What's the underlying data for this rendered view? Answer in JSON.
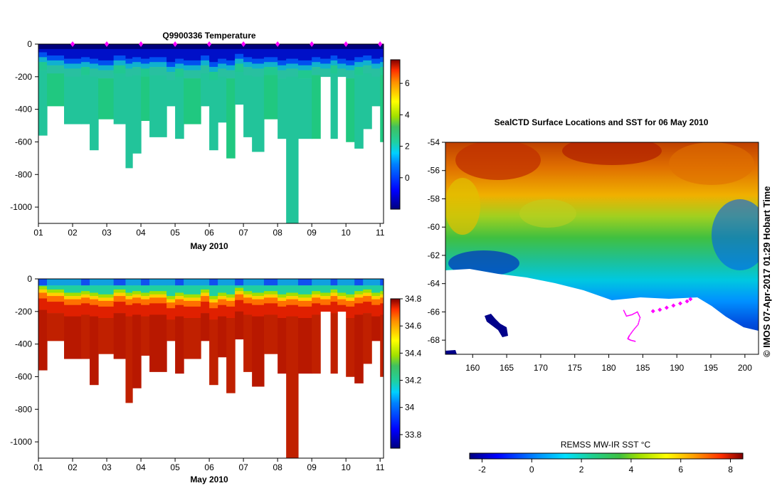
{
  "panels": {
    "temperature": {
      "title": "Q9900336  Temperature",
      "xlabel": "May 2010"
    },
    "salinity": {
      "xlabel": "May 2010"
    },
    "map": {
      "title": "SealCTD Surface Locations and SST for 06 May 2010",
      "colorbar_label": "REMSS MW-IR SST °C",
      "credit": "©  IMOS 07-Apr-2017 01:29 Hobart Time"
    }
  },
  "chart_data": [
    {
      "type": "heatmap",
      "title": "Q9900336  Temperature",
      "xlabel": "May 2010",
      "ylabel": "",
      "xlim": [
        1,
        11.1
      ],
      "ylim": [
        -1100,
        0
      ],
      "x_ticks": [
        1,
        2,
        3,
        4,
        5,
        6,
        7,
        8,
        9,
        10,
        11
      ],
      "x_tick_labels": [
        "01",
        "02",
        "03",
        "04",
        "05",
        "06",
        "07",
        "08",
        "09",
        "10",
        "11"
      ],
      "y_ticks": [
        0,
        -200,
        -400,
        -600,
        -800,
        -1000
      ],
      "y_tick_labels": [
        "0",
        "-200",
        "-400",
        "-600",
        "-800",
        "-1000"
      ],
      "colorbar": {
        "range": [
          -2,
          7.5
        ],
        "ticks": [
          0,
          2,
          4,
          6
        ],
        "tick_labels": [
          "0",
          "2",
          "4",
          "6"
        ]
      },
      "profiles": {
        "x_edges": [
          1,
          1.25,
          1.75,
          2.25,
          2.5,
          2.75,
          3.2,
          3.55,
          3.75,
          4,
          4.25,
          4.75,
          5,
          5.25,
          5.75,
          6,
          6.25,
          6.5,
          6.75,
          7,
          7.25,
          7.6,
          8,
          8.25,
          8.6,
          9,
          9.25,
          9.55,
          9.75,
          10,
          10.25,
          10.5,
          10.75,
          11,
          11.1
        ],
        "max_depth": [
          -560,
          -380,
          -490,
          -490,
          -650,
          -460,
          -490,
          -760,
          -670,
          -470,
          -570,
          -380,
          -580,
          -490,
          -380,
          -650,
          -480,
          -700,
          -370,
          -570,
          -660,
          -460,
          -580,
          -1100,
          -580,
          -580,
          -200,
          -580,
          -200,
          -600,
          -640,
          -520,
          -380,
          -600,
          -540
        ],
        "mixed_layer_depth": [
          -70,
          -90,
          -110,
          -100,
          -110,
          -120,
          -90,
          -110,
          -100,
          -110,
          -100,
          -130,
          -110,
          -120,
          -90,
          -130,
          -110,
          -120,
          -80,
          -100,
          -110,
          -100,
          -120,
          -110,
          -120,
          -100,
          -110,
          -90,
          -110,
          -120,
          -100,
          -90,
          -110,
          -100,
          -120
        ],
        "surface_temperature_C": -1.5,
        "interior_temperature_C": 1.8
      },
      "station_markers_x": [
        2,
        3,
        4,
        5,
        6,
        7,
        8,
        9,
        10,
        11
      ]
    },
    {
      "type": "heatmap",
      "title": "",
      "xlabel": "May 2010",
      "ylabel": "",
      "xlim": [
        1,
        11.1
      ],
      "ylim": [
        -1100,
        0
      ],
      "x_ticks": [
        1,
        2,
        3,
        4,
        5,
        6,
        7,
        8,
        9,
        10,
        11
      ],
      "x_tick_labels": [
        "01",
        "02",
        "03",
        "04",
        "05",
        "06",
        "07",
        "08",
        "09",
        "10",
        "11"
      ],
      "y_ticks": [
        0,
        -200,
        -400,
        -600,
        -800,
        -1000
      ],
      "y_tick_labels": [
        "0",
        "-200",
        "-400",
        "-600",
        "-800",
        "-1000"
      ],
      "colorbar": {
        "range": [
          33.7,
          34.8
        ],
        "ticks": [
          33.8,
          34,
          34.2,
          34.4,
          34.6,
          34.8
        ],
        "tick_labels": [
          "33.8",
          "34",
          "34.2",
          "34.4",
          "34.6",
          "34.8"
        ]
      },
      "profiles": {
        "uses_same_casts_as_temperature": true,
        "surface_salinity": 33.9,
        "deep_salinity": 34.75
      }
    },
    {
      "type": "heatmap",
      "title": "SealCTD Surface Locations and SST for 06 May 2010",
      "xlabel": "",
      "ylabel": "",
      "xlim": [
        156,
        202
      ],
      "ylim": [
        -69,
        -54
      ],
      "x_ticks": [
        160,
        165,
        170,
        175,
        180,
        185,
        190,
        195,
        200
      ],
      "x_tick_labels": [
        "160",
        "165",
        "170",
        "175",
        "180",
        "185",
        "190",
        "195",
        "200"
      ],
      "y_ticks": [
        -54,
        -56,
        -58,
        -60,
        -62,
        -64,
        -66,
        -68
      ],
      "y_tick_labels": [
        "-54",
        "-56",
        "-58",
        "-60",
        "-62",
        "-64",
        "-66",
        "-68"
      ],
      "colorbar": {
        "label": "REMSS MW-IR SST °C",
        "range": [
          -2.5,
          8.5
        ],
        "ticks": [
          -2,
          0,
          2,
          4,
          6,
          8
        ],
        "tick_labels": [
          "-2",
          "0",
          "2",
          "4",
          "6",
          "8"
        ]
      },
      "sst_field": {
        "north_warm_C": 7.5,
        "south_cold_C": -1.5,
        "description": "SST decreasing southward from about 7.5 C near -54 to about -1.5 C near the ice edge"
      },
      "seal_track": {
        "lon": [
          182.2,
          182.6,
          183.4,
          184.2,
          184.6,
          184.3,
          183.6,
          183.0,
          182.8,
          183.2,
          184.0
        ],
        "lat": [
          -65.9,
          -66.3,
          -66.2,
          -66.0,
          -66.4,
          -66.9,
          -67.3,
          -67.7,
          -67.9,
          -68.0,
          -68.1
        ]
      },
      "surface_locations": {
        "lon": [
          186.5,
          187.5,
          188.5,
          189.5,
          190.5,
          191.5,
          192.0
        ],
        "lat": [
          -65.95,
          -65.85,
          -65.7,
          -65.55,
          -65.4,
          -65.25,
          -65.1
        ]
      }
    }
  ]
}
